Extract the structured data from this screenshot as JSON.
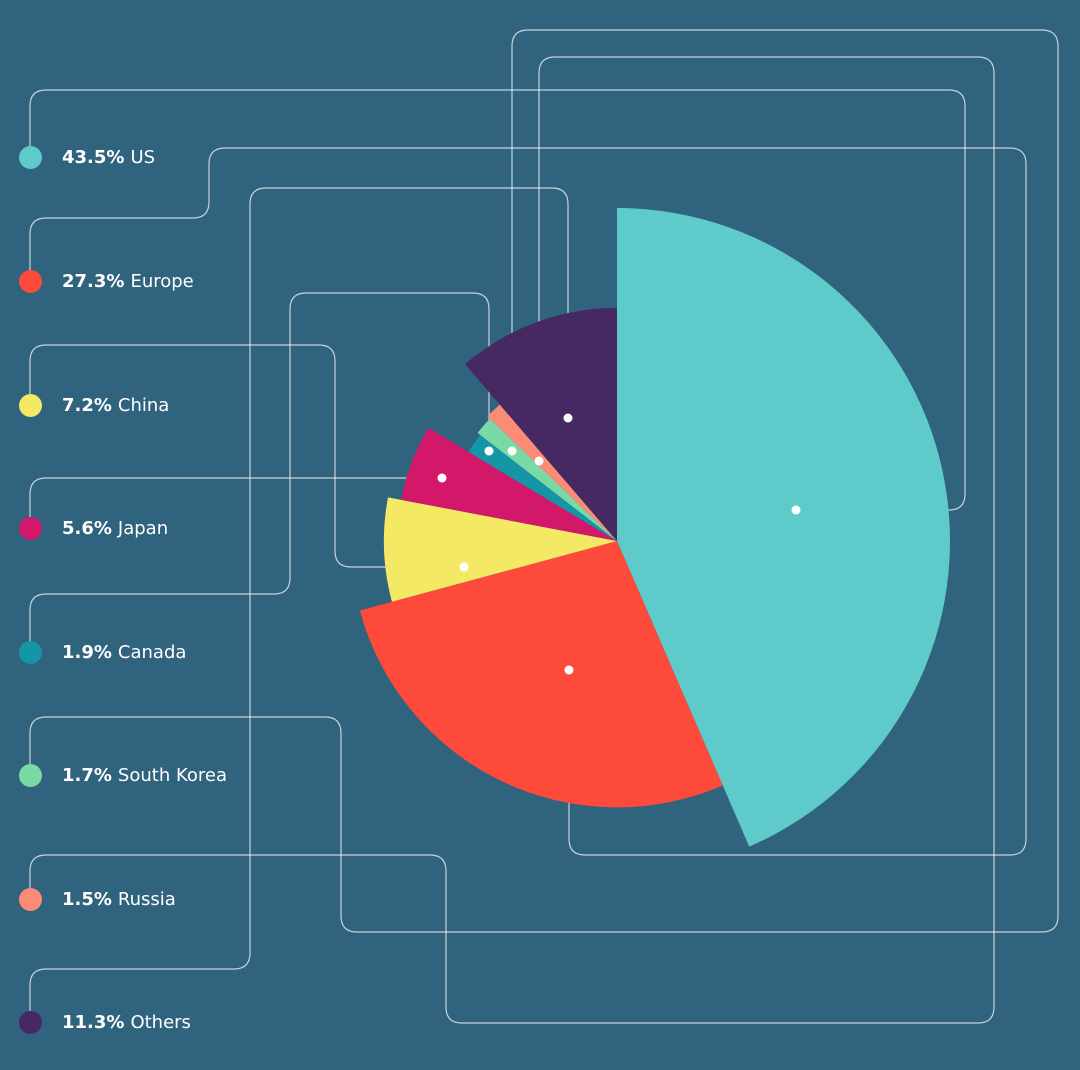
{
  "chart_data": {
    "type": "pie",
    "title": "",
    "slices": [
      {
        "label": "US",
        "value": 43.5,
        "value_label": "43.5%",
        "color": "#5ecaca",
        "radius_scale": 1.0
      },
      {
        "label": "Europe",
        "value": 27.3,
        "value_label": "27.3%",
        "color": "#fd4a3b",
        "radius_scale": 0.8
      },
      {
        "label": "China",
        "value": 7.2,
        "value_label": "7.2%",
        "color": "#f3e964",
        "radius_scale": 0.7
      },
      {
        "label": "Japan",
        "value": 5.6,
        "value_label": "5.6%",
        "color": "#d3186a",
        "radius_scale": 0.66
      },
      {
        "label": "Canada",
        "value": 1.9,
        "value_label": "1.9%",
        "color": "#1496a6",
        "radius_scale": 0.52
      },
      {
        "label": "South Korea",
        "value": 1.7,
        "value_label": "1.7%",
        "color": "#7ad9a5",
        "radius_scale": 0.53
      },
      {
        "label": "Russia",
        "value": 1.5,
        "value_label": "1.5%",
        "color": "#fc8b76",
        "radius_scale": 0.54
      },
      {
        "label": "Others",
        "value": 11.3,
        "value_label": "11.3%",
        "color": "#462863",
        "radius_scale": 0.7
      }
    ],
    "legend_position": "left",
    "start": "top, clockwise"
  }
}
